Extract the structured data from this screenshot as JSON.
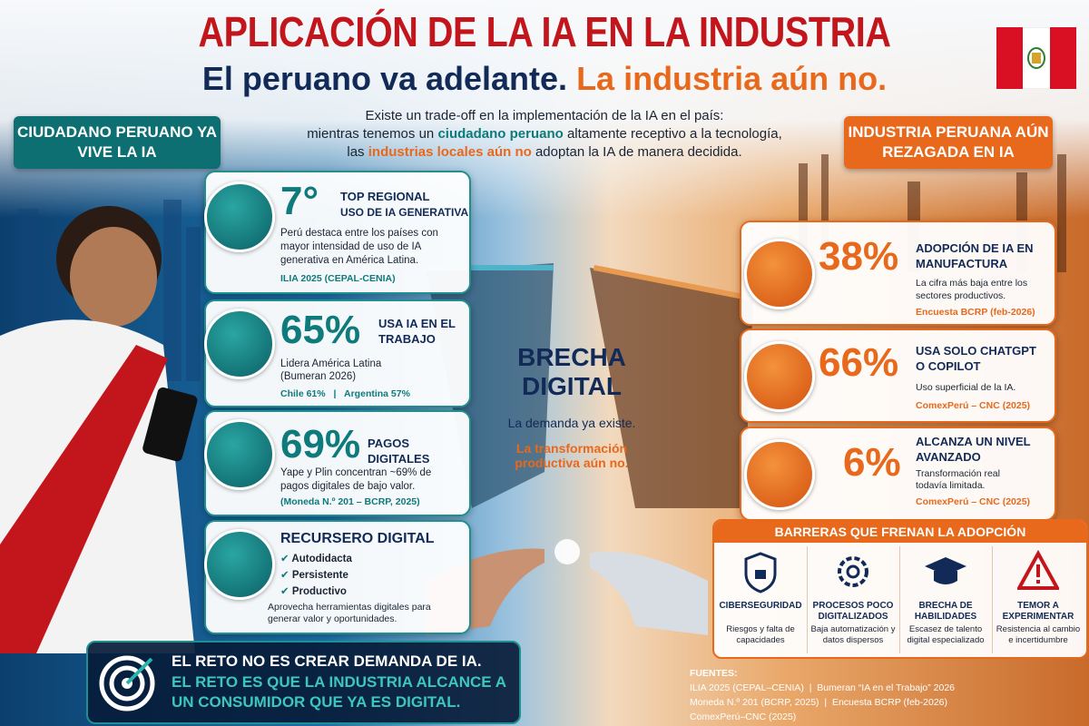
{
  "header": {
    "title": "APLICACIÓN DE LA IA EN LA INDUSTRIA",
    "subtitle": "El peruano va adelante.",
    "subtitle_highlight": "La industria aún no."
  },
  "intro": {
    "line1": "Existe un trade-off en la implementación de la IA en el país:",
    "line2": [
      "mientras tenemos un",
      "ciudadano peruano",
      "altamente receptivo a la tecnología,"
    ],
    "line3": [
      "las",
      "industrias locales aún no",
      "adoptan la IA de manera decidida."
    ]
  },
  "left_panel": {
    "heading": "CIUDADANO PERUANO YA VIVE LA IA",
    "cards": [
      {
        "stat": "7°",
        "label": "TOP REGIONAL",
        "sublabel": "USO DE IA GENERATIVA",
        "text": "Perú destaca entre los países con mayor intensidad de uso de IA generativa en América Latina.",
        "source": "ILIA 2025 (CEPAL-CENIA)"
      },
      {
        "stat": "65%",
        "label": "USA IA EN EL TRABAJO",
        "text": "Lidera América Latina",
        "source": "(Bumeran 2026)",
        "compare": [
          "Chile 61%",
          "Argentina 57%"
        ]
      },
      {
        "stat": "69%",
        "label": "PAGOS DIGITALES",
        "text": "Yape y Plin concentran ~69% de pagos digitales de bajo valor.",
        "source": "(Moneda N.º 201 – BCRP, 2025)"
      },
      {
        "label": "RECURSERO DIGITAL",
        "items": [
          "Autodidacta",
          "Persistente",
          "Productivo"
        ],
        "text": "Aprovecha herramientas digitales para generar valor y oportunidades."
      }
    ]
  },
  "center": {
    "title": "BRECHA DIGITAL",
    "line1": "La demanda ya existe.",
    "line2": "La transformación productiva aún no."
  },
  "right_panel": {
    "heading": "INDUSTRIA PERUANA AÚN REZAGADA EN IA",
    "cards": [
      {
        "stat": "38%",
        "label": "ADOPCIÓN DE IA EN MANUFACTURA",
        "text": "La cifra más baja entre los sectores productivos.",
        "source": "Encuesta BCRP (feb-2026)"
      },
      {
        "stat": "66%",
        "label": "USA SOLO CHATGPT O COPILOT",
        "text": "Uso superficial de la IA.",
        "source": "ComexPerú – CNC (2025)"
      },
      {
        "stat": "6%",
        "label": "ALCANZA UN NIVEL AVANZADO",
        "text": "Transformación real todavía limitada.",
        "source": "ComexPerú – CNC (2025)"
      }
    ]
  },
  "barriers": {
    "title": "BARRERAS QUE FRENAN LA ADOPCIÓN",
    "items": [
      {
        "title": "CIBERSEGURIDAD",
        "text": "Riesgos y falta de capacidades"
      },
      {
        "title": "PROCESOS POCO DIGITALIZADOS",
        "text": "Baja automatización y datos dispersos"
      },
      {
        "title": "BRECHA DE HABILIDADES",
        "text": "Escasez de talento digital especializado"
      },
      {
        "title": "TEMOR A EXPERIMENTAR",
        "text": "Resistencia al cambio e incertidumbre"
      }
    ]
  },
  "challenge": {
    "line1": "EL RETO NO ES CREAR DEMANDA DE IA.",
    "line2": "EL RETO ES QUE LA INDUSTRIA ALCANCE A UN CONSUMIDOR QUE YA ES DIGITAL."
  },
  "sources": {
    "title": "FUENTES:",
    "lines": [
      "ILIA 2025 (CEPAL–CENIA)  |  Bumeran “IA en el Trabajo” 2026",
      "Moneda N.º 201 (BCRP, 2025)  |  Encuesta BCRP (feb-2026)",
      "ComexPerú–CNC (2025)"
    ]
  }
}
